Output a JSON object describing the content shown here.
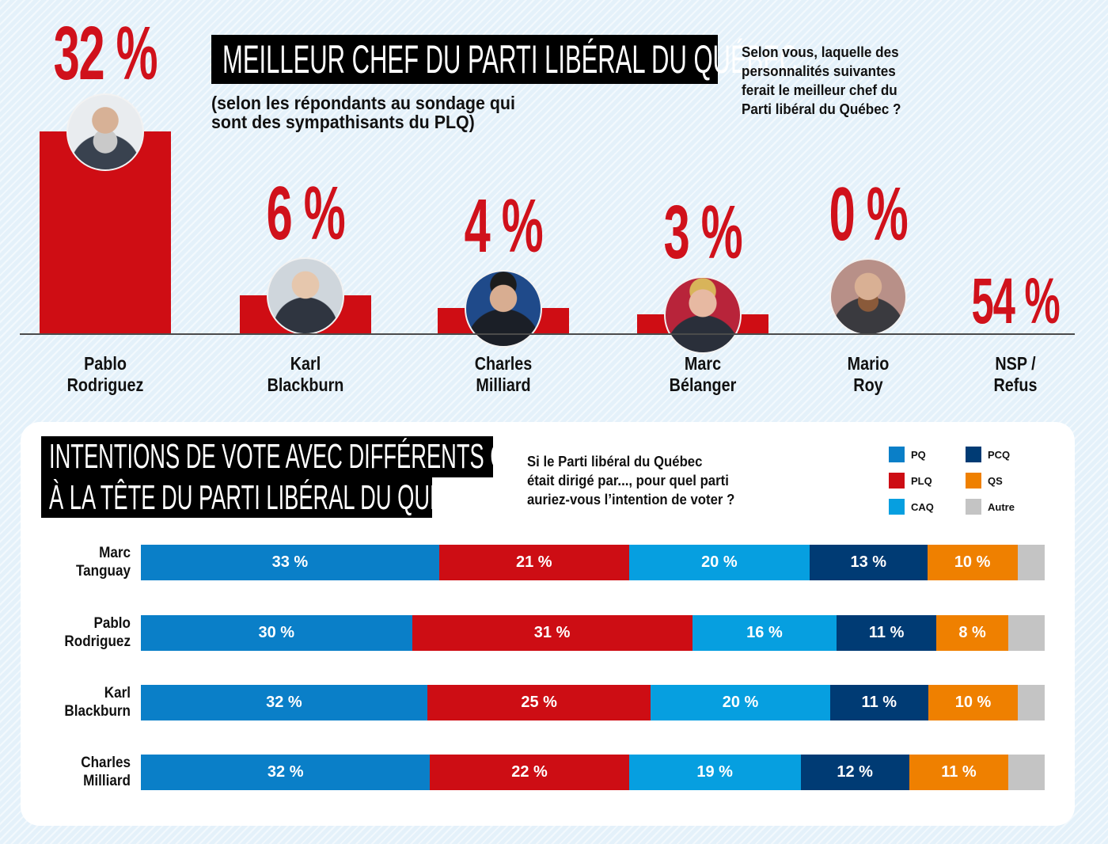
{
  "colors": {
    "accent_red": "#d0111b",
    "PQ": "#0a7fc8",
    "PLQ": "#cd0d14",
    "CAQ": "#069fe0",
    "PCQ": "#003b74",
    "QS": "#ef8000",
    "Autre": "#c4c4c4"
  },
  "top": {
    "title": "MEILLEUR CHEF DU PARTI LIBÉRAL DU QUÉBEC",
    "subtitle_line1": "(selon les répondants au sondage qui",
    "subtitle_line2": "sont des sympathisants du PLQ)",
    "question_lines": [
      "Selon vous, laquelle des",
      "personnalités suivantes",
      "ferait le meilleur chef du",
      "Parti libéral du Québec ?"
    ]
  },
  "bottom": {
    "title_line1": "INTENTIONS DE VOTE AVEC DIFFÉRENTS CHEFS",
    "title_line2": "À LA TÊTE DU PARTI LIBÉRAL DU QUÉBEC",
    "question_lines": [
      "Si le Parti libéral du Québec",
      "était dirigé par..., pour quel parti",
      "auriez-vous l’intention de voter ?"
    ],
    "legend": [
      {
        "key": "PQ",
        "label": "PQ"
      },
      {
        "key": "PCQ",
        "label": "PCQ"
      },
      {
        "key": "PLQ",
        "label": "PLQ"
      },
      {
        "key": "QS",
        "label": "QS"
      },
      {
        "key": "CAQ",
        "label": "CAQ"
      },
      {
        "key": "Autre",
        "label": "Autre"
      }
    ]
  },
  "chart_data": [
    {
      "type": "bar",
      "title": "MEILLEUR CHEF DU PARTI LIBÉRAL DU QUÉBEC",
      "subtitle": "(selon les répondants au sondage qui sont des sympathisants du PLQ)",
      "categories": [
        {
          "line1": "Pablo",
          "line2": "Rodriguez"
        },
        {
          "line1": "Karl",
          "line2": "Blackburn"
        },
        {
          "line1": "Charles",
          "line2": "Milliard"
        },
        {
          "line1": "Marc",
          "line2": "Bélanger"
        },
        {
          "line1": "Mario",
          "line2": "Roy"
        },
        {
          "line1": "NSP /",
          "line2": "Refus"
        }
      ],
      "values": [
        32,
        6,
        4,
        3,
        0,
        54
      ],
      "value_labels": [
        "32 %",
        "6 %",
        "4 %",
        "3 %",
        "0 %",
        "54 %"
      ],
      "unit": "%",
      "ylim": [
        0,
        32
      ],
      "grid": false
    },
    {
      "type": "bar",
      "orientation": "horizontal-stacked",
      "title": "INTENTIONS DE VOTE AVEC DIFFÉRENTS CHEFS À LA TÊTE DU PARTI LIBÉRAL DU QUÉBEC",
      "series_order": [
        "PQ",
        "PLQ",
        "CAQ",
        "PCQ",
        "QS",
        "Autre"
      ],
      "rows": [
        {
          "line1": "Marc",
          "line2": "Tanguay",
          "values": {
            "PQ": 33,
            "PLQ": 21,
            "CAQ": 20,
            "PCQ": 13,
            "QS": 10,
            "Autre": 3
          },
          "labels": {
            "PQ": "33 %",
            "PLQ": "21 %",
            "CAQ": "20 %",
            "PCQ": "13 %",
            "QS": "10 %",
            "Autre": ""
          }
        },
        {
          "line1": "Pablo",
          "line2": "Rodriguez",
          "values": {
            "PQ": 30,
            "PLQ": 31,
            "CAQ": 16,
            "PCQ": 11,
            "QS": 8,
            "Autre": 4
          },
          "labels": {
            "PQ": "30 %",
            "PLQ": "31 %",
            "CAQ": "16 %",
            "PCQ": "11 %",
            "QS": "8 %",
            "Autre": ""
          }
        },
        {
          "line1": "Karl",
          "line2": "Blackburn",
          "values": {
            "PQ": 32,
            "PLQ": 25,
            "CAQ": 20,
            "PCQ": 11,
            "QS": 10,
            "Autre": 3
          },
          "labels": {
            "PQ": "32 %",
            "PLQ": "25 %",
            "CAQ": "20 %",
            "PCQ": "11 %",
            "QS": "10 %",
            "Autre": ""
          }
        },
        {
          "line1": "Charles",
          "line2": "Milliard",
          "values": {
            "PQ": 32,
            "PLQ": 22,
            "CAQ": 19,
            "PCQ": 12,
            "QS": 11,
            "Autre": 4
          },
          "labels": {
            "PQ": "32 %",
            "PLQ": "22 %",
            "CAQ": "19 %",
            "PCQ": "12 %",
            "QS": "11 %",
            "Autre": ""
          }
        }
      ],
      "legend": [
        "PQ",
        "PCQ",
        "PLQ",
        "QS",
        "CAQ",
        "Autre"
      ],
      "legend_placement": "top-right",
      "xlim": [
        0,
        100
      ]
    }
  ]
}
